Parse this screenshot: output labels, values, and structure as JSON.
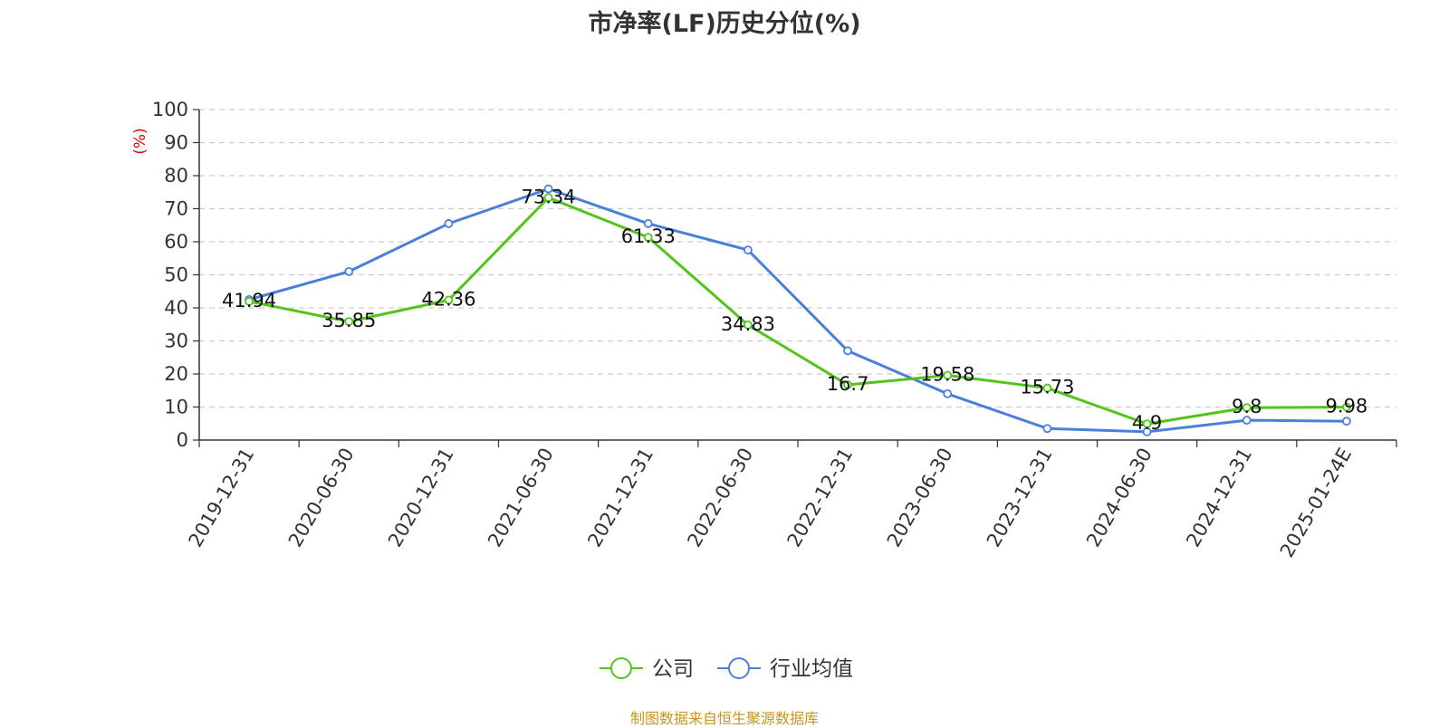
{
  "chart_data": {
    "type": "line",
    "title": "市净率(LF)历史分位(%)",
    "ylabel": "(%)",
    "ylim": [
      0,
      100
    ],
    "yticks": [
      0,
      10,
      20,
      30,
      40,
      50,
      60,
      70,
      80,
      90,
      100
    ],
    "grid": true,
    "legend_position": "bottom",
    "categories": [
      "2019-12-31",
      "2020-06-30",
      "2020-12-31",
      "2021-06-30",
      "2021-12-31",
      "2022-06-30",
      "2022-12-31",
      "2023-06-30",
      "2023-12-31",
      "2024-06-30",
      "2024-12-31",
      "2025-01-24E"
    ],
    "series": [
      {
        "name": "公司",
        "color": "#52c41a",
        "values": [
          41.94,
          35.85,
          42.36,
          73.34,
          61.33,
          34.83,
          16.7,
          19.58,
          15.73,
          4.9,
          9.8,
          9.98
        ],
        "labels": [
          "41.94",
          "35.85",
          "42.36",
          "73.34",
          "61.33",
          "34.83",
          "16.7",
          "19.58",
          "15.73",
          "4.9",
          "9.8",
          "9.98"
        ]
      },
      {
        "name": "行业均值",
        "color": "#4a7fdc",
        "values": [
          42.5,
          51.0,
          65.5,
          76.0,
          65.5,
          57.5,
          27.0,
          14.0,
          3.5,
          2.5,
          6.0,
          5.7
        ]
      }
    ]
  },
  "source_text": "制图数据来自恒生聚源数据库"
}
